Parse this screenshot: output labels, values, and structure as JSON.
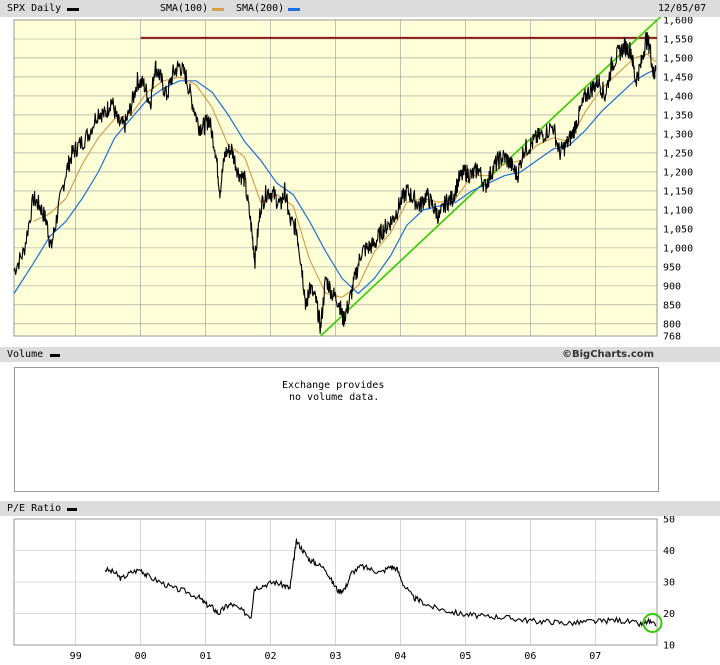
{
  "header": {
    "symbol_label": "SPX Daily",
    "sma1_label": "SMA(100)",
    "sma2_label": "SMA(200)",
    "date": "12/05/07",
    "sma1_color": "#d4a050",
    "sma2_color": "#1e6fe0"
  },
  "watermark": "©BigCharts.com",
  "volume_panel": {
    "title": "Volume",
    "message_line1": "Exchange provides",
    "message_line2": "no volume data."
  },
  "pe_panel": {
    "title": "P/E Ratio"
  },
  "colors": {
    "plot_bg": "#ffffd8",
    "resistance": "#8b1a1a",
    "trendline": "#33cc00",
    "highlight": "#33cc00"
  },
  "chart_data": [
    {
      "type": "line",
      "series_kind": "price",
      "y_ticks": [
        768,
        800,
        850,
        900,
        950,
        1000,
        1050,
        1100,
        1150,
        1200,
        1250,
        1300,
        1350,
        1400,
        1450,
        1500,
        1550,
        1600
      ],
      "y_tick_labels": [
        "768",
        "800",
        "850",
        "900",
        "950",
        "1,000",
        "1,050",
        "1,100",
        "1,150",
        "1,200",
        "1,250",
        "1,300",
        "1,350",
        "1,400",
        "1,450",
        "1,500",
        "1,550",
        "1,600"
      ],
      "ylim": [
        768,
        1600
      ],
      "x_labels": [
        "99",
        "00",
        "01",
        "02",
        "03",
        "04",
        "05",
        "06",
        "07"
      ],
      "x_positions": [
        1999.0,
        2000.0,
        2001.0,
        2002.0,
        2003.0,
        2004.0,
        2005.0,
        2006.0,
        2007.0
      ],
      "xlim": [
        1998.05,
        2007.95
      ],
      "price": [
        [
          1998.05,
          940
        ],
        [
          1998.2,
          990
        ],
        [
          1998.35,
          1130
        ],
        [
          1998.45,
          1110
        ],
        [
          1998.55,
          1070
        ],
        [
          1998.62,
          1000
        ],
        [
          1998.72,
          1090
        ],
        [
          1998.85,
          1200
        ],
        [
          1998.95,
          1250
        ],
        [
          1999.05,
          1270
        ],
        [
          1999.2,
          1300
        ],
        [
          1999.35,
          1360
        ],
        [
          1999.45,
          1350
        ],
        [
          1999.55,
          1390
        ],
        [
          1999.65,
          1330
        ],
        [
          1999.75,
          1320
        ],
        [
          1999.85,
          1370
        ],
        [
          1999.95,
          1440
        ],
        [
          2000.05,
          1430
        ],
        [
          2000.15,
          1380
        ],
        [
          2000.22,
          1480
        ],
        [
          2000.3,
          1450
        ],
        [
          2000.4,
          1400
        ],
        [
          2000.5,
          1460
        ],
        [
          2000.6,
          1480
        ],
        [
          2000.7,
          1450
        ],
        [
          2000.8,
          1380
        ],
        [
          2000.9,
          1320
        ],
        [
          2000.98,
          1320
        ],
        [
          2001.05,
          1340
        ],
        [
          2001.15,
          1260
        ],
        [
          2001.22,
          1150
        ],
        [
          2001.3,
          1250
        ],
        [
          2001.4,
          1260
        ],
        [
          2001.5,
          1200
        ],
        [
          2001.6,
          1180
        ],
        [
          2001.7,
          1060
        ],
        [
          2001.76,
          970
        ],
        [
          2001.85,
          1110
        ],
        [
          2001.95,
          1150
        ],
        [
          2002.05,
          1140
        ],
        [
          2002.15,
          1110
        ],
        [
          2002.22,
          1150
        ],
        [
          2002.3,
          1070
        ],
        [
          2002.4,
          1050
        ],
        [
          2002.48,
          950
        ],
        [
          2002.55,
          840
        ],
        [
          2002.6,
          900
        ],
        [
          2002.7,
          860
        ],
        [
          2002.77,
          790
        ],
        [
          2002.85,
          920
        ],
        [
          2002.95,
          880
        ],
        [
          2003.05,
          860
        ],
        [
          2003.12,
          810
        ],
        [
          2003.2,
          850
        ],
        [
          2003.3,
          920
        ],
        [
          2003.4,
          990
        ],
        [
          2003.5,
          1000
        ],
        [
          2003.6,
          1010
        ],
        [
          2003.7,
          1040
        ],
        [
          2003.8,
          1060
        ],
        [
          2003.9,
          1080
        ],
        [
          2004.0,
          1120
        ],
        [
          2004.1,
          1150
        ],
        [
          2004.2,
          1130
        ],
        [
          2004.3,
          1110
        ],
        [
          2004.4,
          1140
        ],
        [
          2004.5,
          1110
        ],
        [
          2004.6,
          1080
        ],
        [
          2004.7,
          1120
        ],
        [
          2004.8,
          1130
        ],
        [
          2004.9,
          1180
        ],
        [
          2005.0,
          1200
        ],
        [
          2005.1,
          1190
        ],
        [
          2005.2,
          1210
        ],
        [
          2005.3,
          1160
        ],
        [
          2005.4,
          1200
        ],
        [
          2005.5,
          1230
        ],
        [
          2005.6,
          1240
        ],
        [
          2005.7,
          1220
        ],
        [
          2005.8,
          1190
        ],
        [
          2005.9,
          1260
        ],
        [
          2006.0,
          1270
        ],
        [
          2006.1,
          1290
        ],
        [
          2006.2,
          1300
        ],
        [
          2006.35,
          1320
        ],
        [
          2006.45,
          1250
        ],
        [
          2006.55,
          1270
        ],
        [
          2006.65,
          1300
        ],
        [
          2006.75,
          1350
        ],
        [
          2006.85,
          1400
        ],
        [
          2006.95,
          1420
        ],
        [
          2007.05,
          1440
        ],
        [
          2007.15,
          1400
        ],
        [
          2007.25,
          1480
        ],
        [
          2007.35,
          1510
        ],
        [
          2007.45,
          1530
        ],
        [
          2007.55,
          1520
        ],
        [
          2007.62,
          1440
        ],
        [
          2007.7,
          1480
        ],
        [
          2007.78,
          1550
        ],
        [
          2007.84,
          1530
        ],
        [
          2007.9,
          1450
        ],
        [
          2007.93,
          1480
        ]
      ],
      "sma100": [
        [
          1998.35,
          1070
        ],
        [
          1998.6,
          1090
        ],
        [
          1998.85,
          1130
        ],
        [
          1999.1,
          1220
        ],
        [
          1999.35,
          1290
        ],
        [
          1999.6,
          1340
        ],
        [
          1999.85,
          1350
        ],
        [
          2000.1,
          1410
        ],
        [
          2000.35,
          1440
        ],
        [
          2000.6,
          1450
        ],
        [
          2000.85,
          1430
        ],
        [
          2001.1,
          1370
        ],
        [
          2001.35,
          1270
        ],
        [
          2001.6,
          1240
        ],
        [
          2001.85,
          1120
        ],
        [
          2002.1,
          1140
        ],
        [
          2002.35,
          1110
        ],
        [
          2002.6,
          970
        ],
        [
          2002.85,
          880
        ],
        [
          2003.1,
          870
        ],
        [
          2003.35,
          900
        ],
        [
          2003.6,
          990
        ],
        [
          2003.85,
          1040
        ],
        [
          2004.1,
          1120
        ],
        [
          2004.35,
          1130
        ],
        [
          2004.6,
          1120
        ],
        [
          2004.85,
          1130
        ],
        [
          2005.1,
          1190
        ],
        [
          2005.35,
          1190
        ],
        [
          2005.6,
          1220
        ],
        [
          2005.85,
          1230
        ],
        [
          2006.1,
          1270
        ],
        [
          2006.35,
          1290
        ],
        [
          2006.6,
          1280
        ],
        [
          2006.85,
          1360
        ],
        [
          2007.1,
          1420
        ],
        [
          2007.35,
          1460
        ],
        [
          2007.6,
          1500
        ],
        [
          2007.8,
          1510
        ],
        [
          2007.93,
          1490
        ]
      ],
      "sma200": [
        [
          1998.05,
          880
        ],
        [
          1998.35,
          960
        ],
        [
          1998.6,
          1030
        ],
        [
          1998.85,
          1070
        ],
        [
          1999.1,
          1130
        ],
        [
          1999.35,
          1200
        ],
        [
          1999.6,
          1290
        ],
        [
          1999.85,
          1340
        ],
        [
          2000.1,
          1390
        ],
        [
          2000.35,
          1420
        ],
        [
          2000.6,
          1440
        ],
        [
          2000.85,
          1440
        ],
        [
          2001.1,
          1410
        ],
        [
          2001.35,
          1350
        ],
        [
          2001.6,
          1280
        ],
        [
          2001.85,
          1230
        ],
        [
          2002.1,
          1170
        ],
        [
          2002.35,
          1140
        ],
        [
          2002.6,
          1070
        ],
        [
          2002.85,
          990
        ],
        [
          2003.1,
          920
        ],
        [
          2003.35,
          880
        ],
        [
          2003.6,
          920
        ],
        [
          2003.85,
          980
        ],
        [
          2004.1,
          1060
        ],
        [
          2004.35,
          1100
        ],
        [
          2004.6,
          1110
        ],
        [
          2004.85,
          1120
        ],
        [
          2005.1,
          1150
        ],
        [
          2005.35,
          1170
        ],
        [
          2005.6,
          1190
        ],
        [
          2005.85,
          1200
        ],
        [
          2006.1,
          1230
        ],
        [
          2006.35,
          1260
        ],
        [
          2006.6,
          1270
        ],
        [
          2006.85,
          1310
        ],
        [
          2007.1,
          1360
        ],
        [
          2007.35,
          1400
        ],
        [
          2007.6,
          1440
        ],
        [
          2007.8,
          1460
        ],
        [
          2007.93,
          1470
        ]
      ],
      "resistance_level": 1553,
      "resistance_x": [
        2000.0,
        2007.95
      ],
      "trendline": [
        [
          2002.77,
          768
        ],
        [
          2007.95,
          1600
        ]
      ]
    },
    {
      "type": "line",
      "series_kind": "pe_ratio",
      "y_ticks": [
        10,
        20,
        30,
        40,
        50
      ],
      "y_tick_labels": [
        "10",
        "20",
        "30",
        "40",
        "50"
      ],
      "ylim": [
        10,
        50
      ],
      "values": [
        [
          1999.45,
          34
        ],
        [
          1999.6,
          33
        ],
        [
          1999.7,
          31
        ],
        [
          1999.85,
          33
        ],
        [
          2000.0,
          34
        ],
        [
          2000.1,
          32
        ],
        [
          2000.3,
          30
        ],
        [
          2000.5,
          28
        ],
        [
          2000.7,
          27
        ],
        [
          2000.9,
          25
        ],
        [
          2001.0,
          23
        ],
        [
          2001.1,
          22
        ],
        [
          2001.2,
          20
        ],
        [
          2001.3,
          22
        ],
        [
          2001.4,
          23
        ],
        [
          2001.55,
          21
        ],
        [
          2001.7,
          19
        ],
        [
          2001.75,
          28
        ],
        [
          2001.9,
          29
        ],
        [
          2002.05,
          30
        ],
        [
          2002.2,
          29
        ],
        [
          2002.3,
          28
        ],
        [
          2002.35,
          36
        ],
        [
          2002.4,
          43
        ],
        [
          2002.5,
          40
        ],
        [
          2002.6,
          37
        ],
        [
          2002.7,
          36
        ],
        [
          2002.85,
          34
        ],
        [
          2002.95,
          30
        ],
        [
          2003.05,
          27
        ],
        [
          2003.15,
          28
        ],
        [
          2003.25,
          33
        ],
        [
          2003.4,
          35
        ],
        [
          2003.55,
          34
        ],
        [
          2003.7,
          33
        ],
        [
          2003.85,
          35
        ],
        [
          2003.95,
          34
        ],
        [
          2004.05,
          29
        ],
        [
          2004.2,
          25
        ],
        [
          2004.3,
          24
        ],
        [
          2004.5,
          22
        ],
        [
          2004.7,
          21
        ],
        [
          2004.9,
          20
        ],
        [
          2005.1,
          19.5
        ],
        [
          2005.3,
          19
        ],
        [
          2005.5,
          19
        ],
        [
          2005.7,
          18.5
        ],
        [
          2005.9,
          18
        ],
        [
          2006.1,
          17.5
        ],
        [
          2006.3,
          17.5
        ],
        [
          2006.5,
          17
        ],
        [
          2006.7,
          17
        ],
        [
          2006.9,
          17.5
        ],
        [
          2007.1,
          17.5
        ],
        [
          2007.3,
          18
        ],
        [
          2007.5,
          17.5
        ],
        [
          2007.7,
          16.5
        ],
        [
          2007.82,
          17.5
        ],
        [
          2007.93,
          16
        ]
      ],
      "highlight_point": [
        2007.88,
        17
      ]
    }
  ]
}
